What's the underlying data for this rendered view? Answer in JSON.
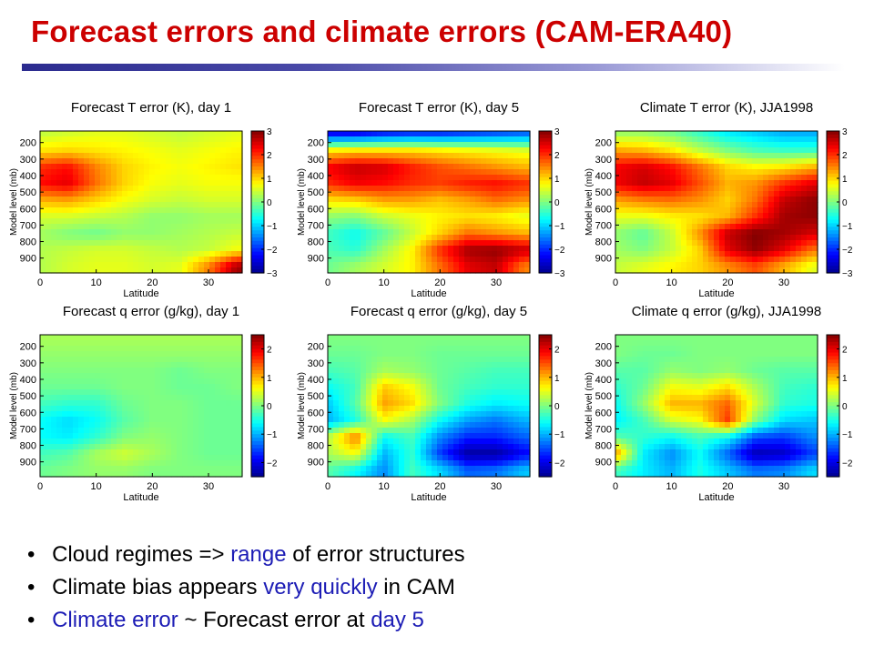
{
  "title": "Forecast errors and climate errors (CAM-ERA40)",
  "colors": {
    "title": "#cc0000",
    "highlight": "#1c1cb5",
    "colormap": [
      "#00008f",
      "#0000ff",
      "#0080ff",
      "#00ffff",
      "#80ff80",
      "#ffff00",
      "#ff8000",
      "#ff0000",
      "#800000"
    ]
  },
  "chart_data": [
    {
      "type": "heatmap",
      "title": "Forecast T error (K), day 1",
      "xlabel": "Latitude",
      "ylabel": "Model level (mb)",
      "xticks": [
        "0",
        "10",
        "20",
        "30"
      ],
      "yticks": [
        "200",
        "300",
        "400",
        "500",
        "600",
        "700",
        "800",
        "900"
      ],
      "xlim": [
        0,
        36
      ],
      "ylim": [
        130,
        990
      ],
      "colorbar": {
        "min": -3,
        "max": 3,
        "ticks": [
          "3",
          "2",
          "1",
          "0",
          "−1",
          "−2",
          "−3"
        ]
      },
      "x": [
        0,
        5,
        10,
        15,
        20,
        25,
        30,
        35
      ],
      "levels": [
        150,
        250,
        350,
        450,
        550,
        650,
        750,
        850,
        950
      ],
      "values": [
        [
          0.4,
          0.5,
          0.6,
          0.6,
          0.5,
          0.4,
          0.5,
          0.6
        ],
        [
          0.9,
          1.0,
          0.9,
          0.8,
          0.7,
          0.6,
          0.7,
          0.8
        ],
        [
          2.0,
          2.2,
          1.5,
          1.0,
          0.8,
          0.7,
          0.8,
          0.9
        ],
        [
          2.2,
          2.4,
          1.6,
          1.0,
          0.7,
          0.6,
          0.7,
          0.7
        ],
        [
          1.2,
          1.3,
          1.0,
          0.7,
          0.5,
          0.4,
          0.5,
          0.5
        ],
        [
          0.5,
          0.5,
          0.4,
          0.3,
          0.1,
          0.1,
          0.2,
          0.2
        ],
        [
          0.2,
          0.0,
          -0.1,
          0.1,
          0.1,
          0.2,
          0.3,
          0.4
        ],
        [
          0.3,
          0.4,
          0.5,
          0.5,
          0.4,
          0.3,
          0.4,
          0.7
        ],
        [
          0.3,
          0.5,
          0.6,
          0.6,
          0.5,
          0.6,
          1.5,
          2.8
        ]
      ]
    },
    {
      "type": "heatmap",
      "title": "Forecast T error (K), day 5",
      "xlabel": "Latitude",
      "ylabel": "Model level (mb)",
      "xticks": [
        "0",
        "10",
        "20",
        "30"
      ],
      "yticks": [
        "200",
        "300",
        "400",
        "500",
        "600",
        "700",
        "800",
        "900"
      ],
      "xlim": [
        0,
        36
      ],
      "ylim": [
        130,
        990
      ],
      "colorbar": {
        "min": -3,
        "max": 3,
        "ticks": [
          "3",
          "2",
          "1",
          "0",
          "−1",
          "−2",
          "−3"
        ]
      },
      "x": [
        0,
        5,
        10,
        15,
        20,
        25,
        30,
        35
      ],
      "levels": [
        150,
        250,
        350,
        450,
        550,
        650,
        750,
        850,
        950
      ],
      "values": [
        [
          -2.2,
          -2.2,
          -2.0,
          -1.9,
          -1.9,
          -1.8,
          -1.7,
          -1.6
        ],
        [
          0.9,
          1.0,
          1.0,
          1.0,
          0.9,
          0.8,
          0.7,
          0.6
        ],
        [
          2.3,
          2.6,
          2.5,
          2.1,
          1.8,
          1.6,
          1.4,
          1.2
        ],
        [
          2.0,
          2.3,
          2.2,
          2.0,
          1.9,
          2.1,
          2.2,
          2.0
        ],
        [
          0.9,
          1.0,
          1.3,
          1.3,
          1.1,
          1.3,
          1.6,
          1.4
        ],
        [
          0.1,
          0.0,
          0.4,
          0.6,
          0.8,
          0.9,
          0.8,
          0.6
        ],
        [
          -0.4,
          -0.7,
          -0.2,
          0.4,
          1.0,
          1.6,
          1.4,
          1.2
        ],
        [
          -0.3,
          -0.5,
          0.2,
          0.8,
          2.0,
          2.8,
          2.9,
          2.6
        ],
        [
          -0.1,
          0.2,
          0.5,
          0.8,
          1.6,
          2.4,
          2.6,
          1.5
        ]
      ]
    },
    {
      "type": "heatmap",
      "title": "Climate T error (K), JJA1998",
      "xlabel": "Latitude",
      "ylabel": "Model level (mb)",
      "xticks": [
        "0",
        "10",
        "20",
        "30"
      ],
      "yticks": [
        "200",
        "300",
        "400",
        "500",
        "600",
        "700",
        "800",
        "900"
      ],
      "xlim": [
        0,
        36
      ],
      "ylim": [
        130,
        990
      ],
      "colorbar": {
        "min": -3,
        "max": 3,
        "ticks": [
          "3",
          "2",
          "1",
          "0",
          "−1",
          "−2",
          "−3"
        ]
      },
      "x": [
        0,
        5,
        10,
        15,
        20,
        25,
        30,
        35
      ],
      "levels": [
        150,
        250,
        350,
        450,
        550,
        650,
        750,
        850,
        950
      ],
      "values": [
        [
          0.2,
          0.2,
          0.0,
          -0.4,
          -0.8,
          -1.0,
          -1.2,
          -1.2
        ],
        [
          1.3,
          1.2,
          0.9,
          0.4,
          0.0,
          -0.3,
          -0.4,
          -0.4
        ],
        [
          2.3,
          2.5,
          2.2,
          1.6,
          1.0,
          0.8,
          0.9,
          1.2
        ],
        [
          2.3,
          2.6,
          2.4,
          1.8,
          1.2,
          1.4,
          2.0,
          2.4
        ],
        [
          1.3,
          1.5,
          1.6,
          1.4,
          1.0,
          1.6,
          2.6,
          2.9
        ],
        [
          0.6,
          0.6,
          0.8,
          0.9,
          1.2,
          2.0,
          2.8,
          2.9
        ],
        [
          0.1,
          -0.2,
          0.4,
          1.4,
          2.6,
          3.0,
          2.8,
          2.5
        ],
        [
          0.2,
          0.0,
          0.4,
          1.0,
          2.4,
          2.9,
          2.4,
          1.6
        ],
        [
          0.4,
          0.6,
          0.8,
          1.0,
          1.4,
          1.8,
          1.2,
          0.6
        ]
      ]
    },
    {
      "type": "heatmap",
      "title": "Forecast q error (g/kg), day 1",
      "xlabel": "Latitude",
      "ylabel": "Model level (mb)",
      "xticks": [
        "0",
        "10",
        "20",
        "30"
      ],
      "yticks": [
        "200",
        "300",
        "400",
        "500",
        "600",
        "700",
        "800",
        "900"
      ],
      "xlim": [
        0,
        36
      ],
      "ylim": [
        130,
        990
      ],
      "colorbar": {
        "min": -2.5,
        "max": 2.5,
        "ticks": [
          "2",
          "1",
          "0",
          "−1",
          "−2"
        ]
      },
      "x": [
        0,
        5,
        10,
        15,
        20,
        25,
        30,
        35
      ],
      "levels": [
        150,
        250,
        350,
        450,
        550,
        650,
        750,
        850,
        950
      ],
      "values": [
        [
          0.2,
          0.2,
          0.2,
          0.2,
          0.2,
          0.2,
          0.2,
          0.2
        ],
        [
          0.1,
          0.1,
          0.1,
          0.1,
          0.1,
          0.1,
          0.1,
          0.1
        ],
        [
          0.0,
          0.0,
          0.0,
          0.0,
          0.0,
          -0.1,
          0.0,
          0.0
        ],
        [
          -0.1,
          -0.1,
          -0.1,
          0.0,
          0.0,
          -0.1,
          -0.1,
          0.0
        ],
        [
          -0.3,
          -0.4,
          -0.4,
          -0.1,
          0.0,
          0.0,
          -0.1,
          -0.1
        ],
        [
          -0.6,
          -0.8,
          -0.6,
          -0.2,
          0.0,
          0.0,
          -0.1,
          -0.1
        ],
        [
          -0.6,
          -0.7,
          -0.4,
          0.0,
          0.1,
          0.0,
          -0.1,
          -0.1
        ],
        [
          -0.3,
          -0.2,
          0.2,
          0.4,
          0.2,
          0.0,
          -0.1,
          -0.1
        ],
        [
          -0.1,
          0.0,
          0.1,
          0.1,
          0.0,
          0.0,
          0.0,
          0.0
        ]
      ]
    },
    {
      "type": "heatmap",
      "title": "Forecast q error (g/kg), day 5",
      "xlabel": "Latitude",
      "ylabel": "Model level (mb)",
      "xticks": [
        "0",
        "10",
        "20",
        "30"
      ],
      "yticks": [
        "200",
        "300",
        "400",
        "500",
        "600",
        "700",
        "800",
        "900"
      ],
      "xlim": [
        0,
        36
      ],
      "ylim": [
        130,
        990
      ],
      "colorbar": {
        "min": -2.5,
        "max": 2.5,
        "ticks": [
          "2",
          "1",
          "0",
          "−1",
          "−2"
        ]
      },
      "x": [
        0,
        5,
        10,
        15,
        20,
        25,
        30,
        35
      ],
      "levels": [
        150,
        250,
        350,
        450,
        550,
        650,
        750,
        850,
        950
      ],
      "values": [
        [
          0.0,
          0.0,
          0.0,
          0.0,
          0.0,
          0.0,
          0.0,
          0.0
        ],
        [
          -0.1,
          -0.1,
          0.0,
          0.0,
          -0.1,
          -0.1,
          -0.1,
          -0.1
        ],
        [
          -0.3,
          -0.2,
          0.2,
          0.1,
          -0.1,
          -0.2,
          -0.3,
          -0.3
        ],
        [
          -0.6,
          -0.3,
          0.9,
          0.6,
          -0.1,
          -0.3,
          -0.4,
          -0.4
        ],
        [
          -0.9,
          -0.2,
          1.1,
          0.8,
          0.0,
          -0.5,
          -0.7,
          -0.6
        ],
        [
          -1.0,
          -0.5,
          0.6,
          0.2,
          -0.6,
          -1.1,
          -1.3,
          -1.0
        ],
        [
          0.3,
          1.3,
          -0.6,
          -0.3,
          -1.2,
          -1.7,
          -1.7,
          -1.4
        ],
        [
          0.2,
          0.6,
          -1.0,
          -0.4,
          -1.6,
          -2.4,
          -2.4,
          -1.9
        ],
        [
          -0.2,
          -0.6,
          -1.2,
          -0.3,
          -0.8,
          -1.4,
          -1.3,
          -0.9
        ]
      ]
    },
    {
      "type": "heatmap",
      "title": "Climate q error (g/kg), JJA1998",
      "xlabel": "Latitude",
      "ylabel": "Model level (mb)",
      "xticks": [
        "0",
        "10",
        "20",
        "30"
      ],
      "yticks": [
        "200",
        "300",
        "400",
        "500",
        "600",
        "700",
        "800",
        "900"
      ],
      "xlim": [
        0,
        36
      ],
      "ylim": [
        130,
        990
      ],
      "colorbar": {
        "min": -2.5,
        "max": 2.5,
        "ticks": [
          "2",
          "1",
          "0",
          "−1",
          "−2"
        ]
      },
      "x": [
        0,
        5,
        10,
        15,
        20,
        25,
        30,
        35
      ],
      "levels": [
        150,
        250,
        350,
        450,
        550,
        650,
        750,
        850,
        950
      ],
      "values": [
        [
          0.0,
          0.0,
          0.0,
          0.0,
          0.0,
          0.0,
          0.0,
          0.0
        ],
        [
          0.0,
          -0.1,
          -0.1,
          0.0,
          0.0,
          0.0,
          0.0,
          0.0
        ],
        [
          -0.2,
          -0.2,
          0.1,
          0.0,
          0.1,
          -0.1,
          -0.2,
          -0.2
        ],
        [
          -0.4,
          -0.1,
          0.6,
          0.5,
          0.8,
          0.2,
          -0.3,
          -0.4
        ],
        [
          -0.6,
          0.1,
          1.0,
          1.0,
          1.4,
          0.4,
          -0.4,
          -0.5
        ],
        [
          -0.7,
          -0.3,
          0.4,
          0.6,
          1.6,
          0.0,
          -0.8,
          -0.9
        ],
        [
          -0.2,
          -0.4,
          -0.6,
          -0.3,
          -0.6,
          -1.5,
          -1.6,
          -1.2
        ],
        [
          1.2,
          -0.7,
          -1.2,
          -0.6,
          -1.4,
          -2.3,
          -2.2,
          -1.6
        ],
        [
          -0.3,
          -0.7,
          -1.0,
          -0.5,
          -0.9,
          -1.3,
          -1.2,
          -0.8
        ]
      ]
    }
  ],
  "bullets": [
    [
      {
        "text": "Cloud regimes => ",
        "hl": false
      },
      {
        "text": "range",
        "hl": true
      },
      {
        "text": " of error structures",
        "hl": false
      }
    ],
    [
      {
        "text": "Climate bias appears ",
        "hl": false
      },
      {
        "text": "very quickly",
        "hl": true
      },
      {
        "text": " in CAM",
        "hl": false
      }
    ],
    [
      {
        "text": "Climate error",
        "hl": true
      },
      {
        "text": " ~ Forecast error at ",
        "hl": false
      },
      {
        "text": "day 5",
        "hl": true
      }
    ]
  ]
}
